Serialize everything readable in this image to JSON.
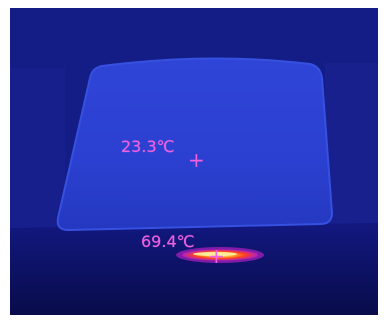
{
  "readouts": {
    "panel_temperature": "23.3℃",
    "hotspot_temperature": "69.4℃"
  },
  "markers": {
    "crosshair_symbol": "+"
  },
  "palette": {
    "background_dark": "#0a0f55",
    "background_mid": "#15208a",
    "panel_surface": "#2a3fd0",
    "panel_edge": "#3650e0",
    "hotspot_core": "#ffe070",
    "hotspot_mid": "#ff5a20",
    "hotspot_outer": "#c020c0",
    "readout_color": "#f060e0"
  }
}
